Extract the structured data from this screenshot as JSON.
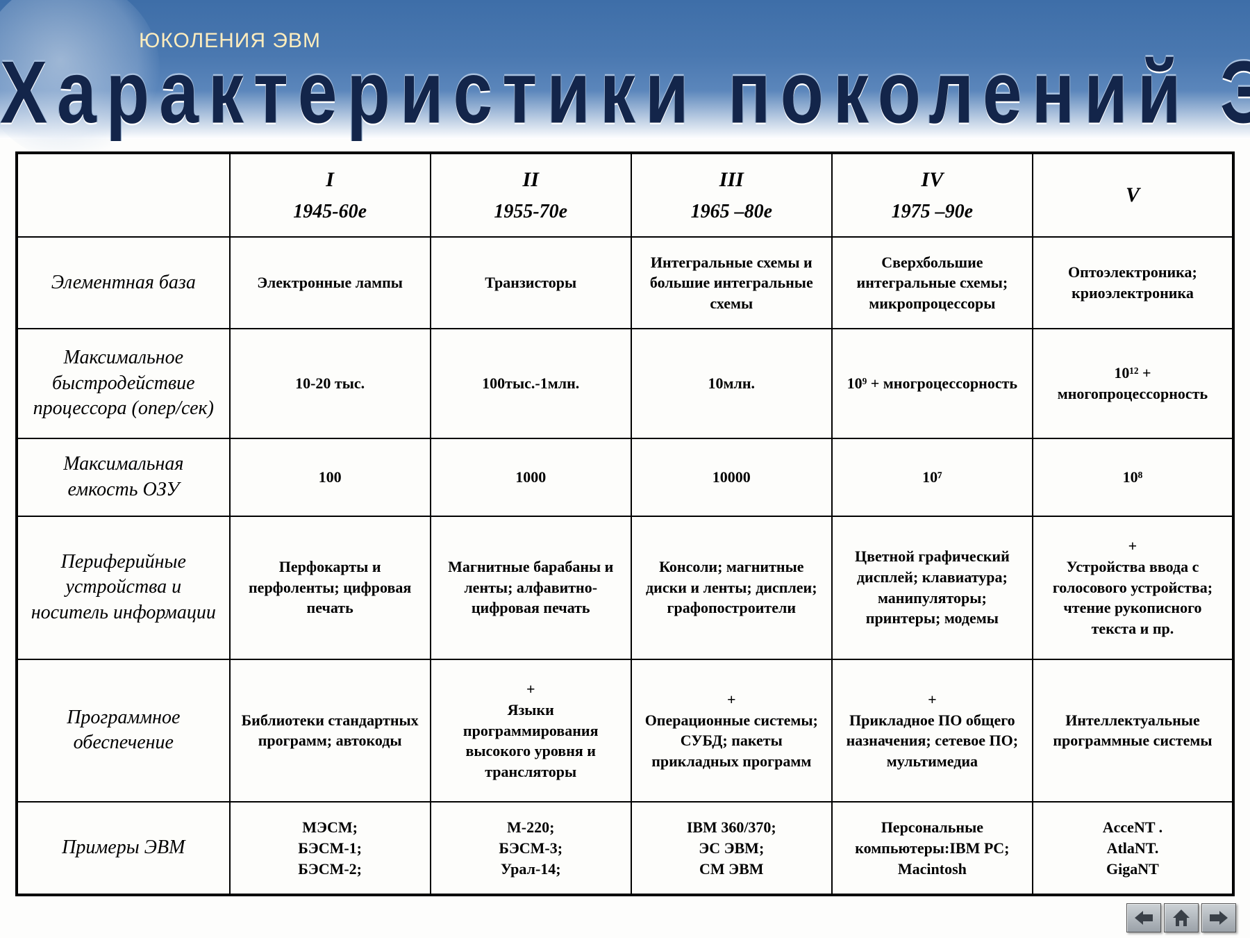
{
  "header": {
    "subtitle": "ЮКОЛЕНИЯ ЭВМ",
    "title": "Характеристики поколений ЭВМ"
  },
  "table": {
    "type": "table",
    "background_color": "#fdfdfb",
    "border_color": "#000000",
    "header_fontsize": 28,
    "rowlabel_fontsize": 28,
    "cell_fontsize": 22,
    "column_widths_pct": [
      17.5,
      16.5,
      16.5,
      16.5,
      16.5,
      16.5
    ],
    "columns": [
      {
        "roman": "I",
        "years": "1945-60е"
      },
      {
        "roman": "II",
        "years": "1955-70е"
      },
      {
        "roman": "III",
        "years": "1965 –80е"
      },
      {
        "roman": "IV",
        "years": "1975 –90е"
      },
      {
        "roman": "V",
        "years": ""
      }
    ],
    "rows": [
      {
        "label": "Элементная база",
        "cells": [
          "Электронные лампы",
          "Транзисторы",
          "Интегральные схемы и большие интегральные схемы",
          "Сверхбольшие интегральные схемы; микропроцессоры",
          "Оптоэлектроника; криоэлектроника"
        ]
      },
      {
        "label": "Максимальное быстродействие процессора (опер/сек)",
        "cells": [
          "10-20 тыс.",
          "100тыс.-1млн.",
          "10млн.",
          "10⁹ + многроцессорность",
          "10¹² + многопроцессорность"
        ]
      },
      {
        "label": "Максимальная емкость ОЗУ",
        "cells": [
          "100",
          "1000",
          "10000",
          "10⁷",
          "10⁸"
        ]
      },
      {
        "label": "Периферийные устройства и носитель информации",
        "cells": [
          "Перфокарты и перфоленты; цифровая печать",
          "Магнитные барабаны и ленты; алфавитно-цифровая печать",
          "Консоли; магнитные диски и ленты; дисплеи; графопостроители",
          "Цветной графический дисплей; клавиатура; манипуляторы; принтеры; модемы",
          "+\nУстройства ввода с голосового устройства; чтение рукописного текста и пр."
        ]
      },
      {
        "label": "Программное обеспечение",
        "cells": [
          "Библиотеки стандартных программ; автокоды",
          "+\nЯзыки программирования высокого уровня и трансляторы",
          "+\nОперационные системы; СУБД; пакеты прикладных программ",
          "+\nПрикладное ПО общего назначения; сетевое ПО; мультимедиа",
          "Интеллектуальные программные системы"
        ]
      },
      {
        "label": "Примеры ЭВМ",
        "cells": [
          "МЭСМ;\nБЭСМ-1;\nБЭСМ-2;",
          "М-220;\nБЭСМ-3;\nУрал-14;",
          "IBM 360/370;\nЭС ЭВМ;\nСМ ЭВМ",
          "Персональные компьютеры:IBM PC; Macintosh",
          "AcceNT .\nAtlaNT.\nGigaNT"
        ]
      }
    ]
  },
  "nav": {
    "prev": "prev",
    "home": "home",
    "next": "next",
    "icon_color": "#3a4048"
  },
  "colors": {
    "header_gradient_top": "#3e6ea8",
    "header_gradient_bottom": "#ffffff",
    "subtitle_color": "#ffedbd",
    "title_color": "#13254a"
  }
}
